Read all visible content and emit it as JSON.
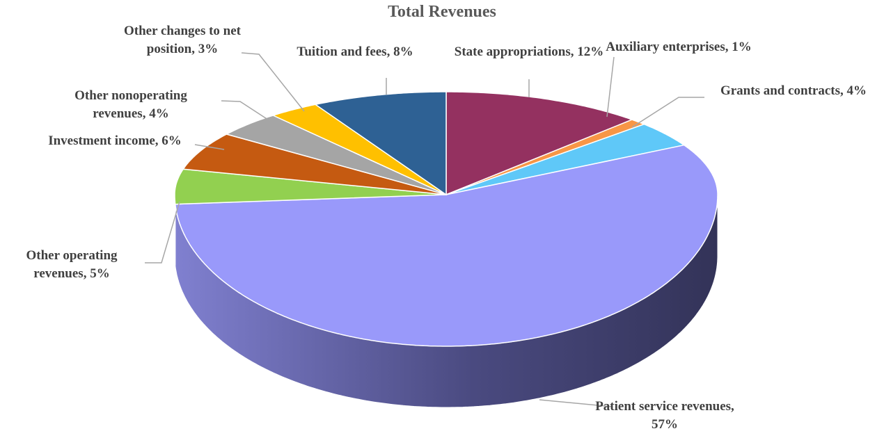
{
  "chart_data": {
    "type": "pie3d",
    "title": "Total Revenues",
    "values": [
      12,
      1,
      4,
      57,
      5,
      6,
      4,
      3,
      8
    ],
    "value_labels": [
      "State appropriations, 12%",
      "Auxiliary enterprises, 1%",
      "Grants and contracts, 4%",
      "Patient service revenues, 57%",
      "Other operating revenues, 5%",
      "Investment income, 6%",
      "Other nonoperating revenues, 4%",
      "Other changes to net position, 3%",
      "Tuition and fees, 8%"
    ],
    "colors": [
      "#943160",
      "#f79646",
      "#5fc8f8",
      "#9999fa",
      "#92d050",
      "#c55a11",
      "#a5a5a5",
      "#ffc000",
      "#2e6194"
    ]
  }
}
